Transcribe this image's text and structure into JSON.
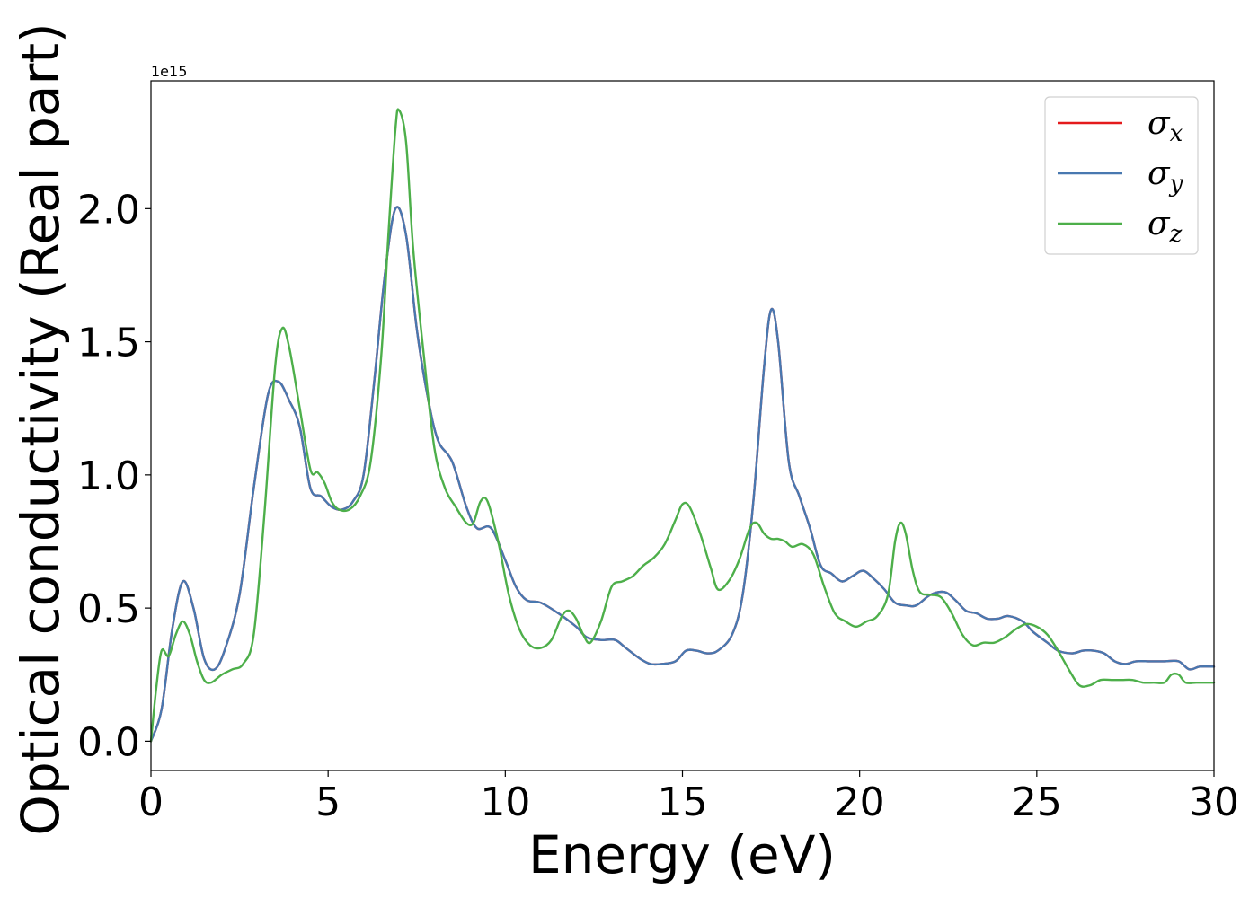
{
  "chart_data": {
    "type": "line",
    "xlabel": "Energy (eV)",
    "ylabel": "Optical conductivity (Real part)",
    "y_offset_text": "1e15",
    "xlim": [
      0,
      30
    ],
    "ylim": [
      -0.11,
      2.48
    ],
    "xticks": [
      0,
      5,
      10,
      15,
      20,
      25,
      30
    ],
    "xtick_labels": [
      "0",
      "5",
      "10",
      "15",
      "20",
      "25",
      "30"
    ],
    "yticks": [
      0.0,
      0.5,
      1.0,
      1.5,
      2.0
    ],
    "ytick_labels": [
      "0.0",
      "0.5",
      "1.0",
      "1.5",
      "2.0"
    ],
    "grid": false,
    "legend_position": "top-right",
    "series": [
      {
        "name": "σ_x",
        "symbol": "σ",
        "subscript": "x",
        "color": "#e41a1c",
        "x": [
          0,
          0.3,
          0.6,
          0.9,
          1.2,
          1.5,
          1.8,
          2.1,
          2.5,
          2.9,
          3.3,
          3.6,
          3.9,
          4.2,
          4.5,
          4.8,
          5.1,
          5.4,
          5.7,
          6.0,
          6.3,
          6.6,
          6.9,
          7.2,
          7.5,
          7.8,
          8.1,
          8.5,
          8.9,
          9.2,
          9.6,
          10.0,
          10.3,
          10.6,
          11.0,
          11.5,
          12.0,
          12.3,
          12.7,
          13.1,
          13.4,
          13.8,
          14.1,
          14.4,
          14.8,
          15.1,
          15.4,
          15.7,
          16.0,
          16.4,
          16.7,
          17.0,
          17.3,
          17.5,
          17.7,
          18.0,
          18.3,
          18.6,
          18.9,
          19.2,
          19.5,
          19.8,
          20.1,
          20.4,
          20.7,
          21.0,
          21.3,
          21.6,
          22.0,
          22.4,
          22.7,
          23.0,
          23.3,
          23.6,
          23.9,
          24.2,
          24.6,
          24.9,
          25.3,
          25.6,
          26.0,
          26.3,
          26.6,
          26.9,
          27.2,
          27.5,
          27.8,
          28.2,
          28.6,
          29.0,
          29.3,
          29.6,
          30.0
        ],
        "y": [
          0.0,
          0.12,
          0.42,
          0.6,
          0.5,
          0.31,
          0.27,
          0.35,
          0.55,
          0.95,
          1.3,
          1.35,
          1.28,
          1.18,
          0.95,
          0.92,
          0.88,
          0.87,
          0.9,
          1.0,
          1.35,
          1.75,
          2.0,
          1.9,
          1.55,
          1.3,
          1.13,
          1.05,
          0.88,
          0.8,
          0.8,
          0.68,
          0.58,
          0.53,
          0.52,
          0.48,
          0.43,
          0.39,
          0.38,
          0.38,
          0.35,
          0.31,
          0.29,
          0.29,
          0.3,
          0.34,
          0.34,
          0.33,
          0.34,
          0.4,
          0.55,
          0.9,
          1.4,
          1.62,
          1.5,
          1.05,
          0.92,
          0.8,
          0.66,
          0.63,
          0.6,
          0.62,
          0.64,
          0.61,
          0.57,
          0.52,
          0.51,
          0.51,
          0.55,
          0.56,
          0.53,
          0.49,
          0.48,
          0.46,
          0.46,
          0.47,
          0.45,
          0.41,
          0.37,
          0.34,
          0.33,
          0.34,
          0.34,
          0.33,
          0.3,
          0.29,
          0.3,
          0.3,
          0.3,
          0.3,
          0.27,
          0.28,
          0.28
        ]
      },
      {
        "name": "σ_y",
        "symbol": "σ",
        "subscript": "y",
        "color": "#4878b0",
        "x": [
          0,
          0.3,
          0.6,
          0.9,
          1.2,
          1.5,
          1.8,
          2.1,
          2.5,
          2.9,
          3.3,
          3.6,
          3.9,
          4.2,
          4.5,
          4.8,
          5.1,
          5.4,
          5.7,
          6.0,
          6.3,
          6.6,
          6.9,
          7.2,
          7.5,
          7.8,
          8.1,
          8.5,
          8.9,
          9.2,
          9.6,
          10.0,
          10.3,
          10.6,
          11.0,
          11.5,
          12.0,
          12.3,
          12.7,
          13.1,
          13.4,
          13.8,
          14.1,
          14.4,
          14.8,
          15.1,
          15.4,
          15.7,
          16.0,
          16.4,
          16.7,
          17.0,
          17.3,
          17.5,
          17.7,
          18.0,
          18.3,
          18.6,
          18.9,
          19.2,
          19.5,
          19.8,
          20.1,
          20.4,
          20.7,
          21.0,
          21.3,
          21.6,
          22.0,
          22.4,
          22.7,
          23.0,
          23.3,
          23.6,
          23.9,
          24.2,
          24.6,
          24.9,
          25.3,
          25.6,
          26.0,
          26.3,
          26.6,
          26.9,
          27.2,
          27.5,
          27.8,
          28.2,
          28.6,
          29.0,
          29.3,
          29.6,
          30.0
        ],
        "y": [
          0.0,
          0.12,
          0.42,
          0.6,
          0.5,
          0.31,
          0.27,
          0.35,
          0.55,
          0.95,
          1.3,
          1.35,
          1.28,
          1.18,
          0.95,
          0.92,
          0.88,
          0.87,
          0.9,
          1.0,
          1.35,
          1.75,
          2.0,
          1.9,
          1.55,
          1.3,
          1.13,
          1.05,
          0.88,
          0.8,
          0.8,
          0.68,
          0.58,
          0.53,
          0.52,
          0.48,
          0.43,
          0.39,
          0.38,
          0.38,
          0.35,
          0.31,
          0.29,
          0.29,
          0.3,
          0.34,
          0.34,
          0.33,
          0.34,
          0.4,
          0.55,
          0.9,
          1.4,
          1.62,
          1.5,
          1.05,
          0.92,
          0.8,
          0.66,
          0.63,
          0.6,
          0.62,
          0.64,
          0.61,
          0.57,
          0.52,
          0.51,
          0.51,
          0.55,
          0.56,
          0.53,
          0.49,
          0.48,
          0.46,
          0.46,
          0.47,
          0.45,
          0.41,
          0.37,
          0.34,
          0.33,
          0.34,
          0.34,
          0.33,
          0.3,
          0.29,
          0.3,
          0.3,
          0.3,
          0.3,
          0.27,
          0.28,
          0.28
        ]
      },
      {
        "name": "σ_z",
        "symbol": "σ",
        "subscript": "z",
        "color": "#4daf4a",
        "x": [
          0,
          0.15,
          0.3,
          0.5,
          0.7,
          0.9,
          1.1,
          1.3,
          1.5,
          1.7,
          2.0,
          2.3,
          2.6,
          2.9,
          3.2,
          3.5,
          3.7,
          3.9,
          4.2,
          4.5,
          4.7,
          4.9,
          5.1,
          5.3,
          5.6,
          5.9,
          6.2,
          6.5,
          6.7,
          6.9,
          7.0,
          7.2,
          7.4,
          7.7,
          8.0,
          8.3,
          8.6,
          8.9,
          9.1,
          9.3,
          9.5,
          9.8,
          10.1,
          10.4,
          10.7,
          11.0,
          11.3,
          11.6,
          11.8,
          12.0,
          12.2,
          12.4,
          12.7,
          13.0,
          13.3,
          13.6,
          13.9,
          14.2,
          14.5,
          14.8,
          15.0,
          15.2,
          15.5,
          15.8,
          16.0,
          16.3,
          16.6,
          16.9,
          17.1,
          17.3,
          17.5,
          17.7,
          17.9,
          18.1,
          18.4,
          18.7,
          19.0,
          19.3,
          19.6,
          19.9,
          20.2,
          20.5,
          20.8,
          21.0,
          21.15,
          21.3,
          21.5,
          21.7,
          22.0,
          22.3,
          22.6,
          22.9,
          23.2,
          23.5,
          23.8,
          24.1,
          24.4,
          24.7,
          25.0,
          25.3,
          25.6,
          25.9,
          26.2,
          26.5,
          26.8,
          27.1,
          27.4,
          27.7,
          28.0,
          28.3,
          28.6,
          28.8,
          29.0,
          29.2,
          29.5,
          29.8,
          30.0
        ],
        "y": [
          0.0,
          0.2,
          0.34,
          0.32,
          0.4,
          0.45,
          0.4,
          0.3,
          0.23,
          0.22,
          0.25,
          0.27,
          0.29,
          0.4,
          0.85,
          1.4,
          1.55,
          1.48,
          1.25,
          1.02,
          1.01,
          0.97,
          0.9,
          0.87,
          0.87,
          0.92,
          1.05,
          1.45,
          1.9,
          2.3,
          2.37,
          2.25,
          1.85,
          1.45,
          1.1,
          0.95,
          0.88,
          0.82,
          0.82,
          0.9,
          0.9,
          0.75,
          0.55,
          0.42,
          0.36,
          0.35,
          0.38,
          0.47,
          0.49,
          0.46,
          0.4,
          0.37,
          0.45,
          0.58,
          0.6,
          0.62,
          0.66,
          0.69,
          0.74,
          0.83,
          0.89,
          0.88,
          0.78,
          0.65,
          0.57,
          0.6,
          0.68,
          0.8,
          0.82,
          0.78,
          0.76,
          0.76,
          0.75,
          0.73,
          0.74,
          0.7,
          0.58,
          0.48,
          0.45,
          0.43,
          0.45,
          0.47,
          0.55,
          0.75,
          0.82,
          0.78,
          0.64,
          0.56,
          0.55,
          0.54,
          0.48,
          0.4,
          0.36,
          0.37,
          0.37,
          0.39,
          0.42,
          0.44,
          0.43,
          0.4,
          0.34,
          0.27,
          0.21,
          0.21,
          0.23,
          0.23,
          0.23,
          0.23,
          0.22,
          0.22,
          0.22,
          0.25,
          0.25,
          0.22,
          0.22,
          0.22,
          0.22
        ]
      }
    ]
  }
}
